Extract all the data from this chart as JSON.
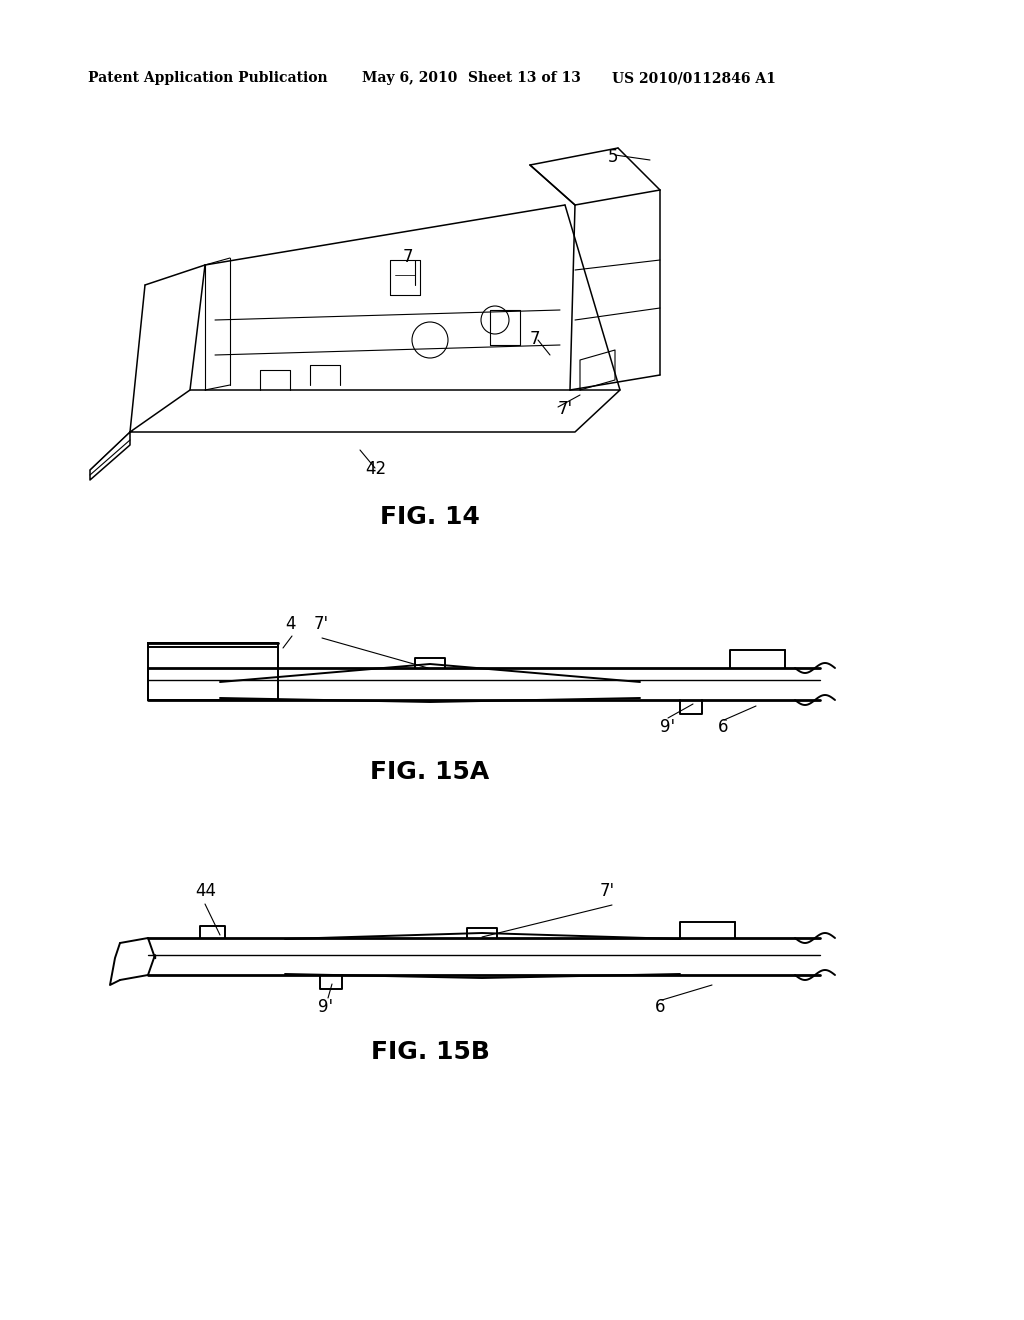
{
  "bg_color": "#ffffff",
  "header_text": "Patent Application Publication",
  "header_date": "May 6, 2010",
  "header_sheet": "Sheet 13 of 13",
  "header_patent": "US 2010/0112846 A1",
  "fig14_caption": "FIG. 14",
  "fig15a_caption": "FIG. 15A",
  "fig15b_caption": "FIG. 15B",
  "line_color": "#000000"
}
